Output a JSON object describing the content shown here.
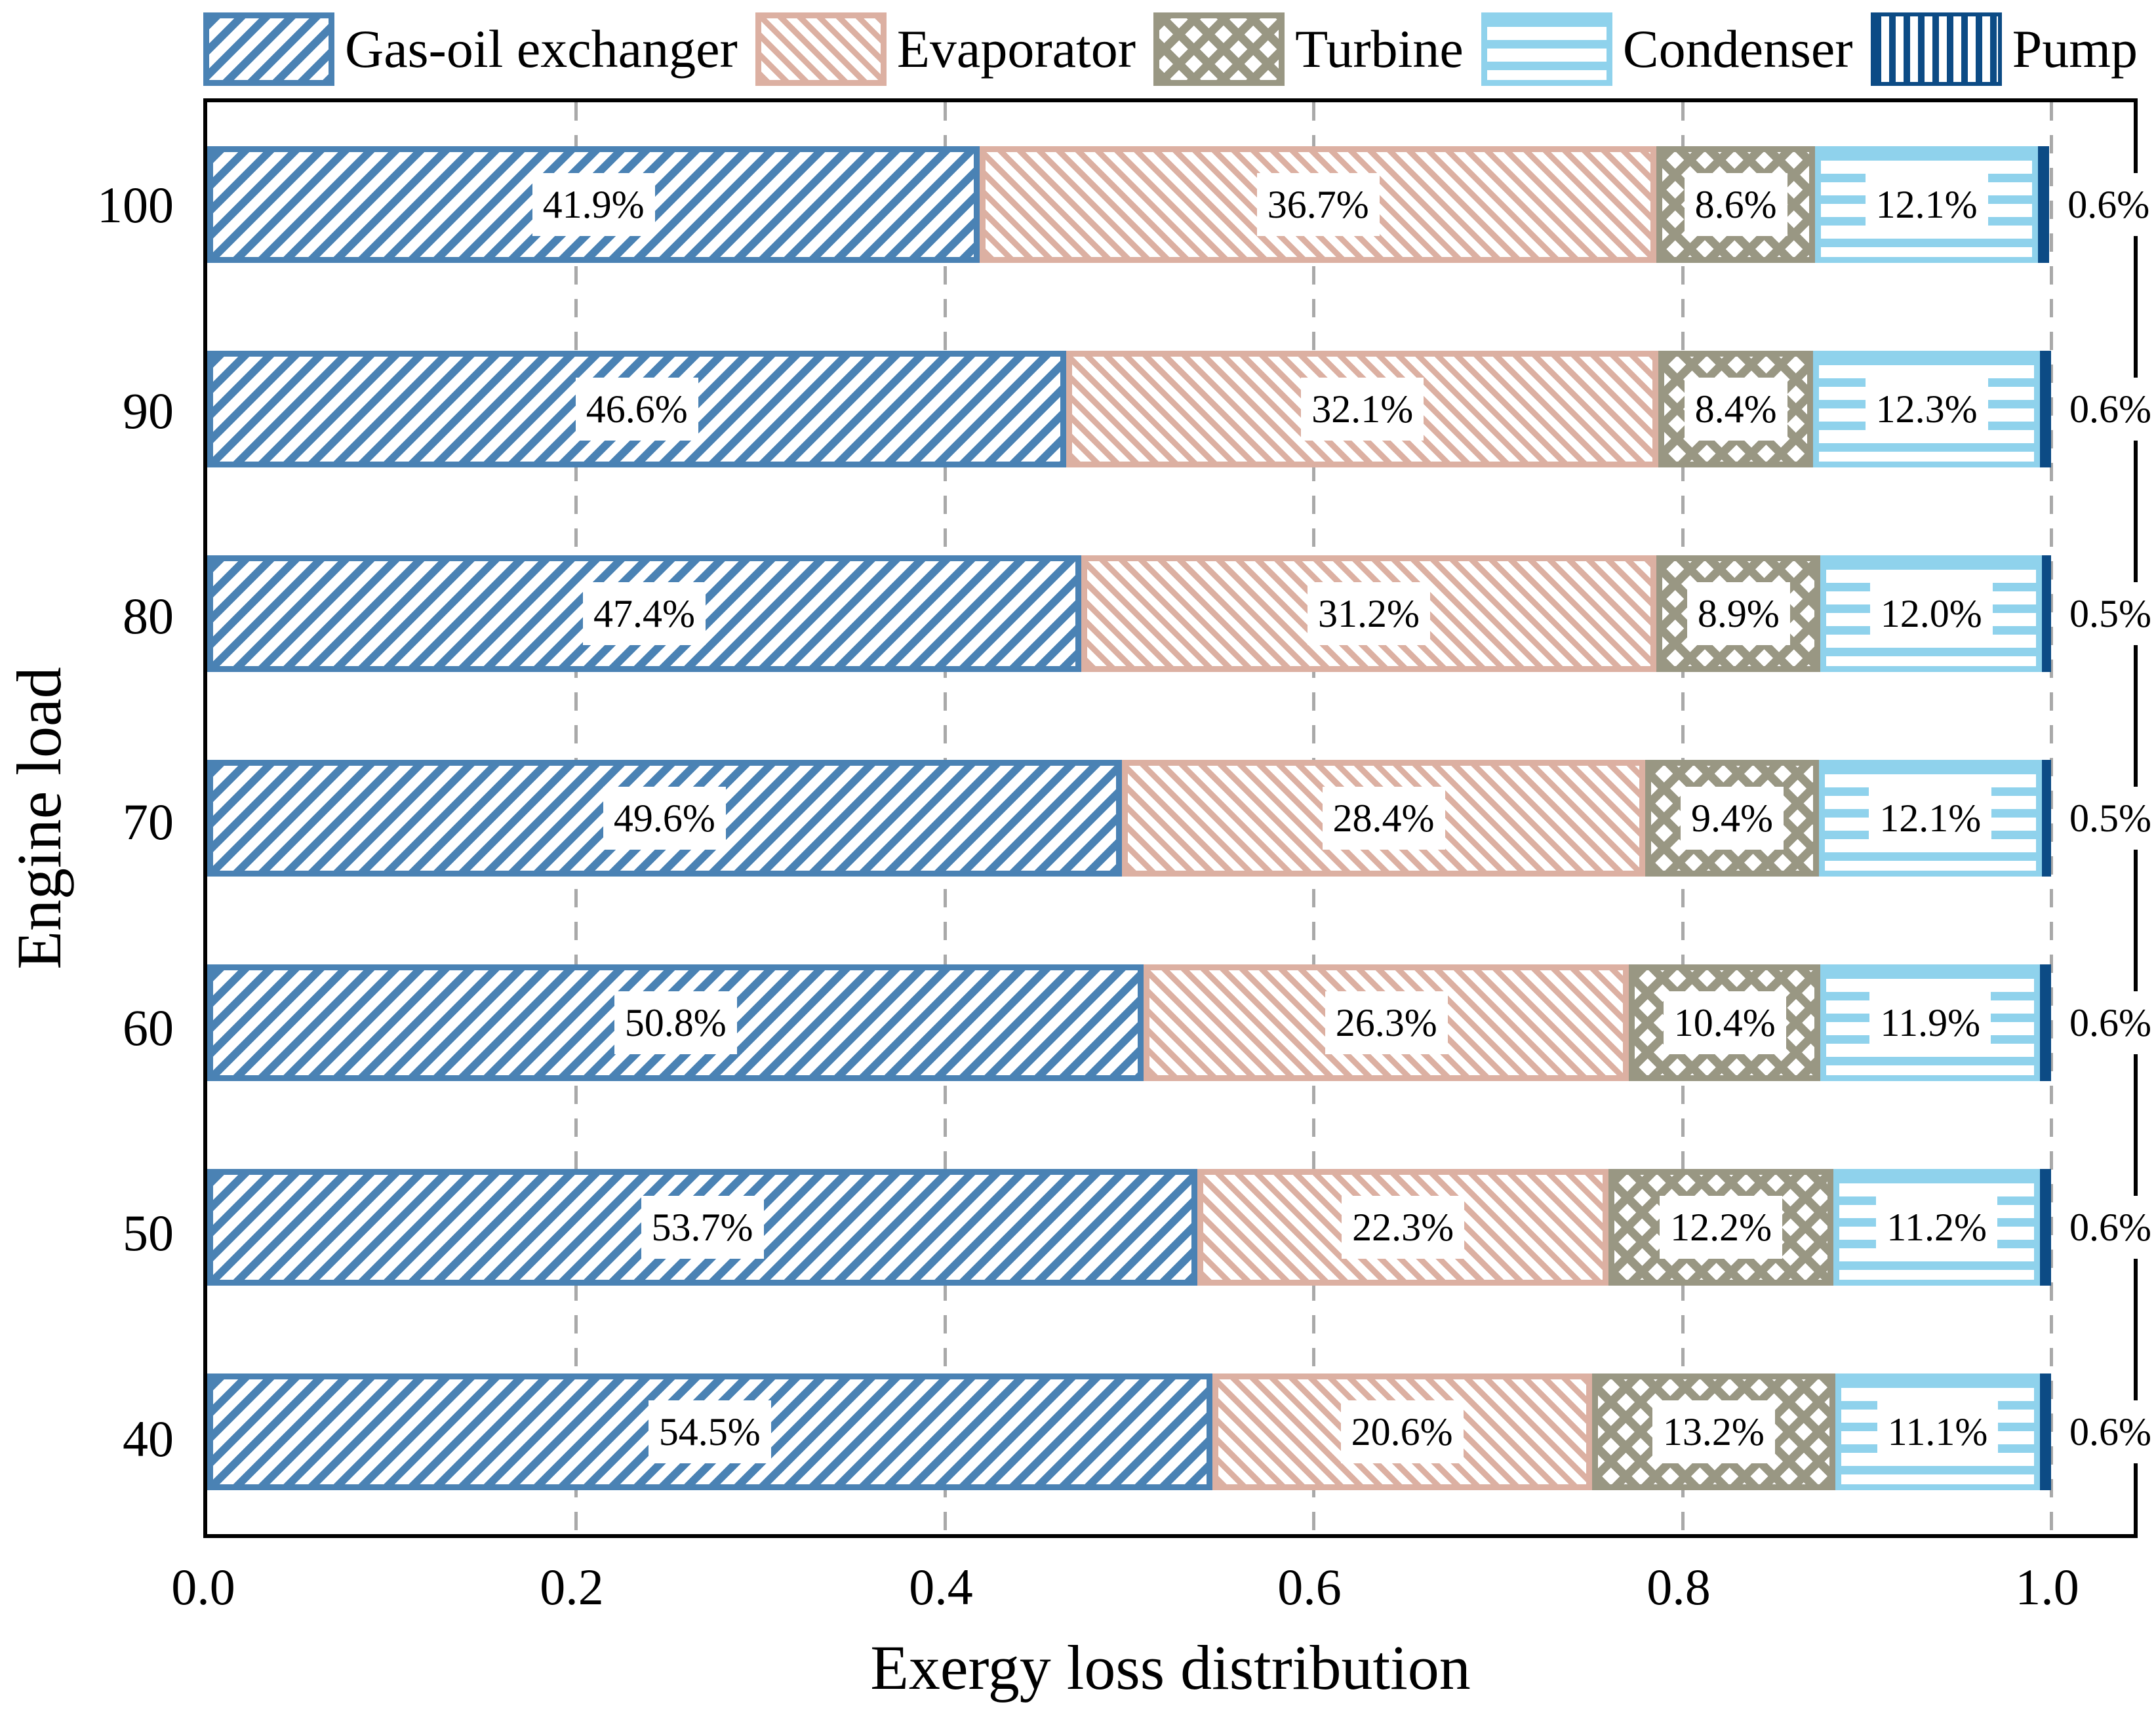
{
  "chart_data": {
    "type": "bar",
    "orientation": "horizontal-stacked",
    "xlabel": "Exergy loss distribution",
    "ylabel": "Engine load",
    "categories": [
      "100",
      "90",
      "80",
      "70",
      "60",
      "50",
      "40"
    ],
    "series": [
      {
        "name": "Gas-oil exchanger",
        "hatch": "diagonal-up",
        "color": "#4a82b4",
        "values": [
          41.9,
          46.6,
          47.4,
          49.6,
          50.8,
          53.7,
          54.5
        ]
      },
      {
        "name": "Evaporator",
        "hatch": "diagonal-down",
        "color": "#dcb0a2",
        "values": [
          36.7,
          32.1,
          31.2,
          28.4,
          26.3,
          22.3,
          20.6
        ]
      },
      {
        "name": "Turbine",
        "hatch": "crosshatch",
        "color": "#999783",
        "values": [
          8.6,
          8.4,
          8.9,
          9.4,
          10.4,
          12.2,
          13.2
        ]
      },
      {
        "name": "Condenser",
        "hatch": "horizontal",
        "color": "#8fd2ec",
        "values": [
          12.1,
          12.3,
          12.0,
          12.1,
          11.9,
          11.2,
          11.1
        ]
      },
      {
        "name": "Pump",
        "hatch": "vertical",
        "color": "#0c4b85",
        "values": [
          0.6,
          0.6,
          0.5,
          0.5,
          0.6,
          0.6,
          0.6
        ]
      }
    ],
    "label_format": "percent-one-decimal",
    "x_ticks": [
      "0.0",
      "0.2",
      "0.4",
      "0.6",
      "0.8",
      "1.0"
    ],
    "xlim": [
      0.0,
      1.049
    ],
    "grid": "vertical dashed at 0.2 intervals",
    "legend_position": "top",
    "colors": {
      "grid": "#a9a9a9",
      "frame": "#000000",
      "background": "#ffffff",
      "label_box": "#ffffff"
    }
  }
}
